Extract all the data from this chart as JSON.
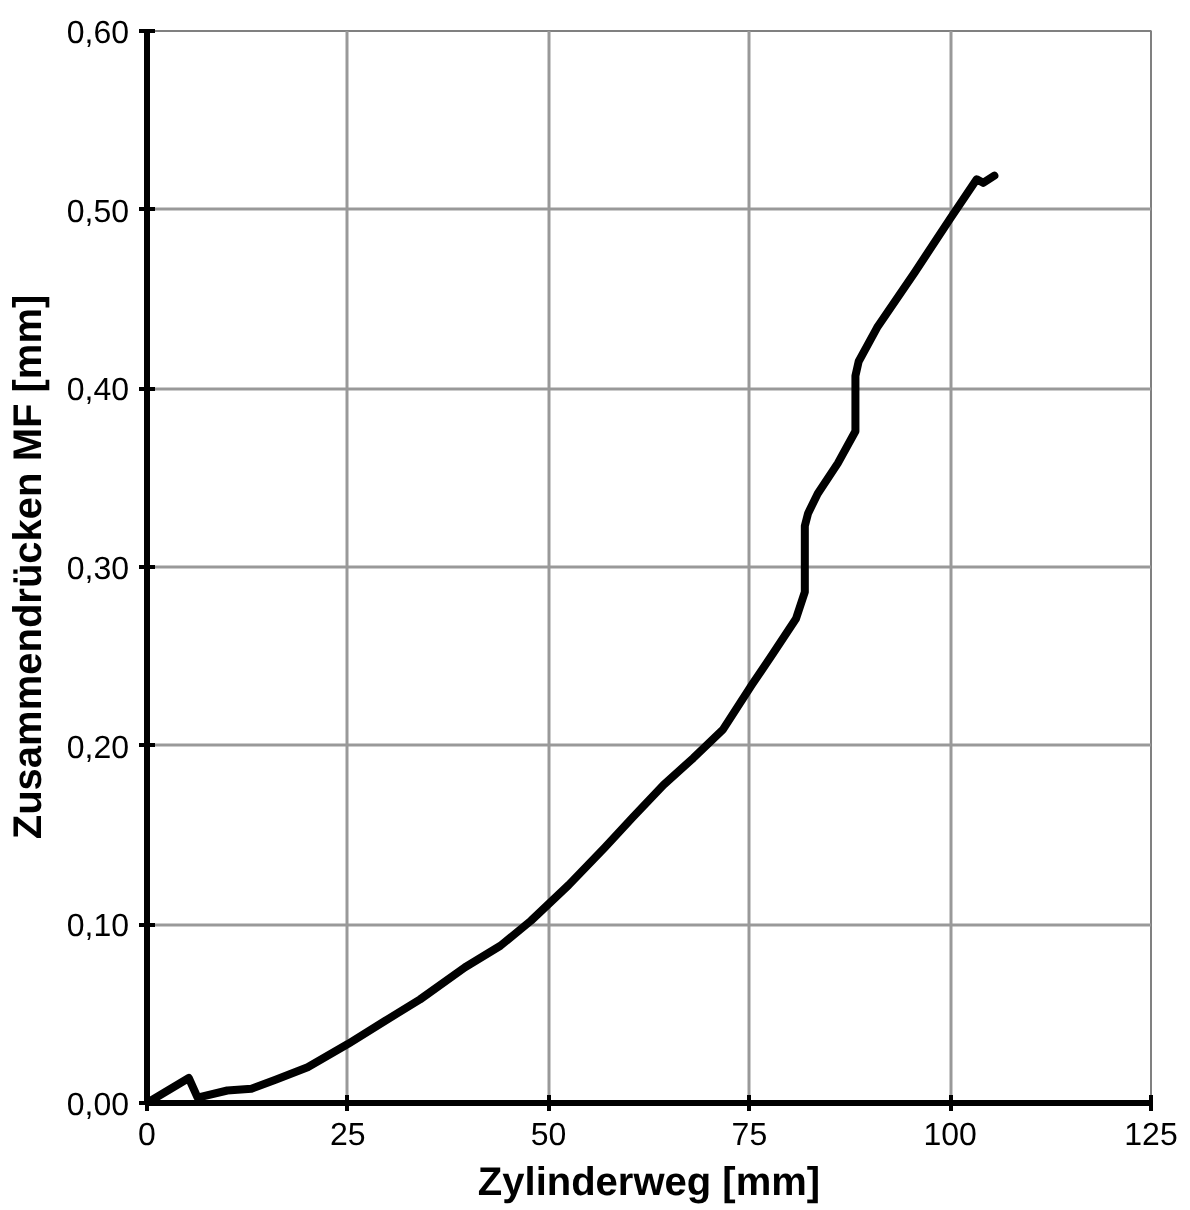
{
  "chart_data": {
    "type": "line",
    "xlabel": "Zylinderweg [mm]",
    "ylabel": "Zusammendrücken MF [mm]",
    "series": [
      {
        "color": "#000000",
        "x": [
          0,
          5.2,
          6.3,
          10,
          13,
          16,
          20,
          25,
          30,
          34,
          39.6,
          44,
          47.8,
          52.5,
          57,
          60.5,
          64.3,
          68,
          71.7,
          75.3,
          78,
          80.8,
          81.9,
          81.9,
          82.3,
          83.5,
          86,
          88.2,
          88.2,
          88.6,
          90.9,
          95.6,
          100,
          103.3,
          104.1,
          105.5
        ],
        "values": [
          0,
          0.014,
          0.003,
          0.007,
          0.008,
          0.013,
          0.02,
          0.033,
          0.047,
          0.058,
          0.076,
          0.088,
          0.102,
          0.122,
          0.143,
          0.16,
          0.178,
          0.193,
          0.209,
          0.234,
          0.252,
          0.271,
          0.286,
          0.323,
          0.33,
          0.341,
          0.358,
          0.376,
          0.407,
          0.415,
          0.434,
          0.465,
          0.495,
          0.517,
          0.515,
          0.519
        ]
      }
    ],
    "xlim": [
      0,
      125
    ],
    "ylim": [
      0,
      0.6
    ],
    "xticks": [
      0,
      25,
      50,
      75,
      100,
      125
    ],
    "yticks": [
      {
        "value": 0,
        "label": "0,00"
      },
      {
        "value": 0.1,
        "label": "0,10"
      },
      {
        "value": 0.2,
        "label": "0,20"
      },
      {
        "value": 0.3,
        "label": "0,30"
      },
      {
        "value": 0.4,
        "label": "0,40"
      },
      {
        "value": 0.5,
        "label": "0,50"
      },
      {
        "value": 0.6,
        "label": "0,60"
      }
    ],
    "grid": true,
    "marker": "none",
    "line_style": "solid"
  }
}
